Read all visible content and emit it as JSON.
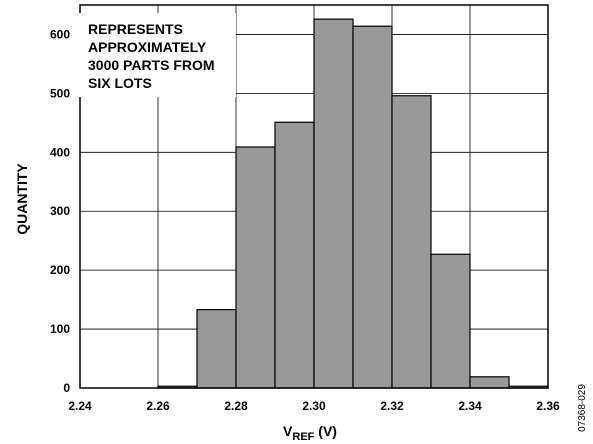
{
  "chart_data": {
    "type": "bar",
    "bin_edges": [
      2.26,
      2.27,
      2.28,
      2.29,
      2.3,
      2.31,
      2.32,
      2.33,
      2.34,
      2.35
    ],
    "values": [
      3,
      133,
      409,
      451,
      626,
      614,
      496,
      227,
      19,
      3
    ],
    "bin_starts": [
      2.26,
      2.27,
      2.28,
      2.29,
      2.3,
      2.31,
      2.32,
      2.33,
      2.34,
      2.35
    ],
    "bin_width": 0.01,
    "xlim": [
      2.24,
      2.36
    ],
    "ylim": [
      0,
      650
    ],
    "x_ticks": [
      "2.24",
      "2.26",
      "2.28",
      "2.30",
      "2.32",
      "2.34",
      "2.36"
    ],
    "y_ticks": [
      "0",
      "100",
      "200",
      "300",
      "400",
      "500",
      "600"
    ],
    "xlabel_main": "V",
    "xlabel_sub": "REF",
    "xlabel_unit": " (V)",
    "ylabel": "QUANTITY",
    "annotation_lines": [
      "REPRESENTS",
      "APPROXIMATELY",
      "3000 PARTS FROM",
      "SIX LOTS"
    ],
    "grid": true,
    "bar_color": "#999999",
    "bar_edge_color": "#000000"
  },
  "figure_code": "07368-029"
}
